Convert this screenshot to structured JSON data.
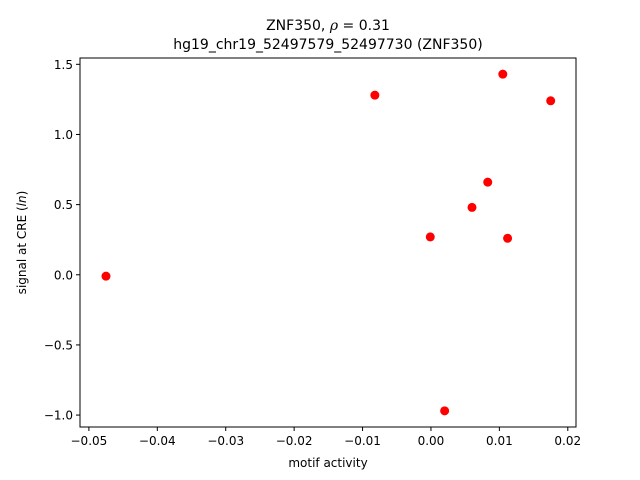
{
  "chart_data": {
    "type": "scatter",
    "title_line1_prefix": "ZNF350, ",
    "title_line1_symbol": "ρ",
    "title_line1_suffix": " = 0.31",
    "title_line2": "hg19_chr19_52497579_52497730 (ZNF350)",
    "xlabel": "motif activity",
    "ylabel_prefix": "signal at CRE (",
    "ylabel_symbol": "ln",
    "ylabel_suffix": ")",
    "xlim": [
      -0.0513,
      0.0212
    ],
    "ylim": [
      -1.085,
      1.545
    ],
    "xticks": [
      -0.05,
      -0.04,
      -0.03,
      -0.02,
      -0.01,
      0.0,
      0.01,
      0.02
    ],
    "xtick_labels": [
      "−0.05",
      "−0.04",
      "−0.03",
      "−0.02",
      "−0.01",
      "0.00",
      "0.01",
      "0.02"
    ],
    "yticks": [
      -1.0,
      -0.5,
      0.0,
      0.5,
      1.0,
      1.5
    ],
    "ytick_labels": [
      "−1.0",
      "−0.5",
      "0.0",
      "0.5",
      "1.0",
      "1.5"
    ],
    "points": [
      {
        "x": -0.0475,
        "y": -0.01
      },
      {
        "x": -0.0082,
        "y": 1.28
      },
      {
        "x": -0.0001,
        "y": 0.27
      },
      {
        "x": 0.002,
        "y": -0.97
      },
      {
        "x": 0.006,
        "y": 0.48
      },
      {
        "x": 0.0083,
        "y": 0.66
      },
      {
        "x": 0.0105,
        "y": 1.43
      },
      {
        "x": 0.0112,
        "y": 0.26
      },
      {
        "x": 0.0175,
        "y": 1.24
      }
    ],
    "marker_color": "#ff0000",
    "grid": false,
    "legend": "none"
  }
}
